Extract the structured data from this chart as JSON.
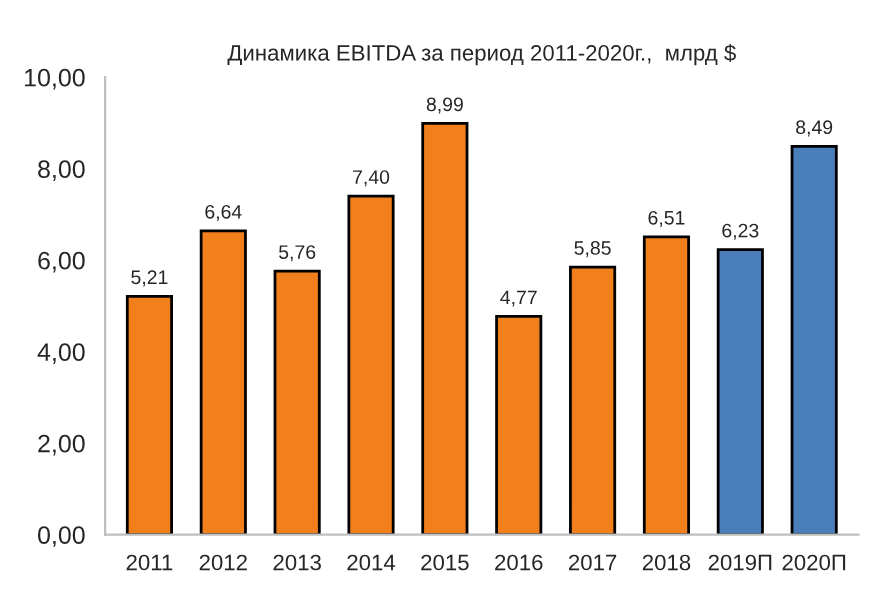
{
  "chart_data": {
    "type": "bar",
    "title": "Динамика EBITDA за период 2011-2020г.,  млрд $",
    "categories": [
      "2011",
      "2012",
      "2013",
      "2014",
      "2015",
      "2016",
      "2017",
      "2018",
      "2019П",
      "2020П"
    ],
    "values": [
      5.21,
      6.64,
      5.76,
      7.4,
      8.99,
      4.77,
      5.85,
      6.51,
      6.23,
      8.49
    ],
    "colors": [
      "#f07f1c",
      "#f07f1c",
      "#f07f1c",
      "#f07f1c",
      "#f07f1c",
      "#f07f1c",
      "#f07f1c",
      "#f07f1c",
      "#4a7ebb",
      "#4a7ebb"
    ],
    "value_labels": [
      "5,21",
      "6,64",
      "5,76",
      "7,40",
      "8,99",
      "4,77",
      "5,85",
      "6,51",
      "6,23",
      "8,49"
    ],
    "ylim": [
      0,
      10
    ],
    "yticks": [
      {
        "value": 0,
        "label": "0,00"
      },
      {
        "value": 2,
        "label": "2,00"
      },
      {
        "value": 4,
        "label": "4,00"
      },
      {
        "value": 6,
        "label": "6,00"
      },
      {
        "value": 8,
        "label": "8,00"
      },
      {
        "value": 10,
        "label": "10,00"
      }
    ],
    "grid": false
  }
}
